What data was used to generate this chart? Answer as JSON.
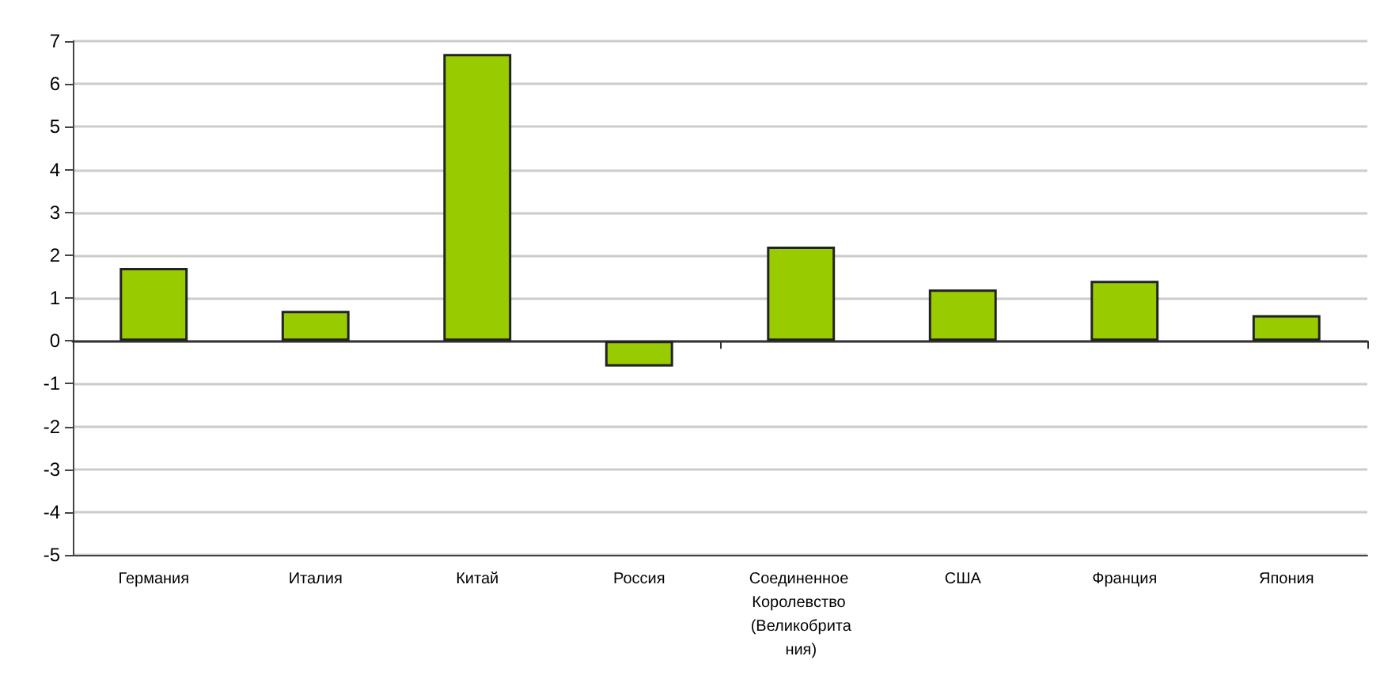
{
  "chart_data": {
    "type": "bar",
    "categories": [
      "Германия",
      "Италия",
      "Китай",
      "Россия",
      "Соединенное Королевство (Великобритания)",
      "США",
      "Франция",
      "Япония"
    ],
    "values": [
      1.7,
      0.7,
      6.7,
      -0.6,
      2.2,
      1.2,
      1.4,
      0.6
    ],
    "color": "#99cc00",
    "ylim": [
      -5,
      7
    ],
    "yticks": [
      -5,
      -4,
      -3,
      -2,
      -1,
      0,
      1,
      2,
      3,
      4,
      5,
      6,
      7
    ],
    "grid": "y"
  }
}
